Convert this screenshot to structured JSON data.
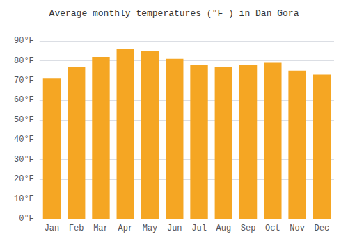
{
  "chart_data": {
    "type": "bar",
    "title": "Average monthly temperatures (°F ) in Dan Gora",
    "categories": [
      "Jan",
      "Feb",
      "Mar",
      "Apr",
      "May",
      "Jun",
      "Jul",
      "Aug",
      "Sep",
      "Oct",
      "Nov",
      "Dec"
    ],
    "values": [
      71,
      77,
      82,
      86,
      85,
      81,
      78,
      77,
      78,
      79,
      75,
      73
    ],
    "color": "#F5A623",
    "ylim": [
      0,
      95
    ],
    "yticks": [
      {
        "value": 0,
        "label": "0°F"
      },
      {
        "value": 10,
        "label": "10°F"
      },
      {
        "value": 20,
        "label": "20°F"
      },
      {
        "value": 30,
        "label": "30°F"
      },
      {
        "value": 40,
        "label": "40°F"
      },
      {
        "value": 50,
        "label": "50°F"
      },
      {
        "value": 60,
        "label": "60°F"
      },
      {
        "value": 70,
        "label": "70°F"
      },
      {
        "value": 80,
        "label": "80°F"
      },
      {
        "value": 90,
        "label": "90°F"
      }
    ],
    "grid": true
  }
}
